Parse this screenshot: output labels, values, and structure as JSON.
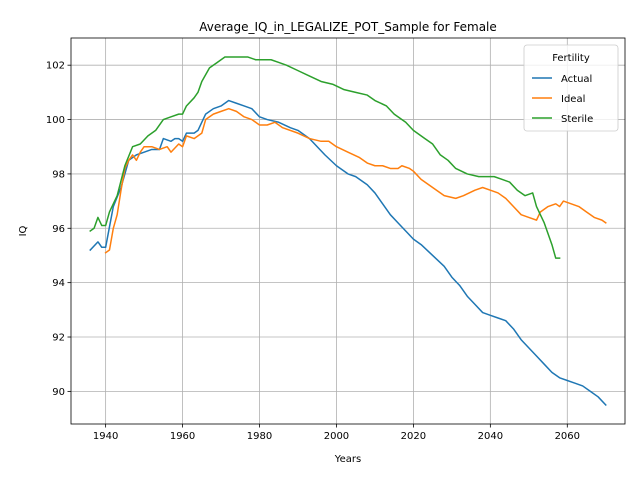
{
  "chart_data": {
    "type": "line",
    "title": "Average_IQ_in_LEGALIZE_POT_Sample for Female",
    "xlabel": "Years",
    "ylabel": "IQ",
    "xlim": [
      1931,
      2075
    ],
    "ylim": [
      88.8,
      103.0
    ],
    "xticks": [
      1940,
      1960,
      1980,
      2000,
      2020,
      2040,
      2060
    ],
    "yticks": [
      90,
      92,
      94,
      96,
      98,
      100,
      102
    ],
    "grid": true,
    "legend": {
      "title": "Fertility",
      "placement": "top-right"
    },
    "series": [
      {
        "name": "Actual",
        "color": "#1f77b4",
        "points": [
          [
            1936,
            95.2
          ],
          [
            1938,
            95.5
          ],
          [
            1939,
            95.3
          ],
          [
            1940,
            95.3
          ],
          [
            1942,
            96.8
          ],
          [
            1944,
            97.5
          ],
          [
            1946,
            98.5
          ],
          [
            1948,
            98.7
          ],
          [
            1950,
            98.8
          ],
          [
            1952,
            98.9
          ],
          [
            1954,
            98.9
          ],
          [
            1955,
            99.3
          ],
          [
            1957,
            99.2
          ],
          [
            1958,
            99.3
          ],
          [
            1959,
            99.3
          ],
          [
            1960,
            99.2
          ],
          [
            1961,
            99.5
          ],
          [
            1963,
            99.5
          ],
          [
            1964,
            99.6
          ],
          [
            1966,
            100.2
          ],
          [
            1968,
            100.4
          ],
          [
            1970,
            100.5
          ],
          [
            1972,
            100.7
          ],
          [
            1974,
            100.6
          ],
          [
            1976,
            100.5
          ],
          [
            1978,
            100.4
          ],
          [
            1980,
            100.1
          ],
          [
            1982,
            100.0
          ],
          [
            1985,
            99.9
          ],
          [
            1988,
            99.7
          ],
          [
            1990,
            99.6
          ],
          [
            1993,
            99.3
          ],
          [
            1995,
            99.0
          ],
          [
            1997,
            98.7
          ],
          [
            2000,
            98.3
          ],
          [
            2003,
            98.0
          ],
          [
            2005,
            97.9
          ],
          [
            2008,
            97.6
          ],
          [
            2010,
            97.3
          ],
          [
            2012,
            96.9
          ],
          [
            2014,
            96.5
          ],
          [
            2016,
            96.2
          ],
          [
            2018,
            95.9
          ],
          [
            2020,
            95.6
          ],
          [
            2022,
            95.4
          ],
          [
            2025,
            95.0
          ],
          [
            2028,
            94.6
          ],
          [
            2030,
            94.2
          ],
          [
            2032,
            93.9
          ],
          [
            2034,
            93.5
          ],
          [
            2036,
            93.2
          ],
          [
            2038,
            92.9
          ],
          [
            2040,
            92.8
          ],
          [
            2042,
            92.7
          ],
          [
            2044,
            92.6
          ],
          [
            2046,
            92.3
          ],
          [
            2048,
            91.9
          ],
          [
            2050,
            91.6
          ],
          [
            2052,
            91.3
          ],
          [
            2054,
            91.0
          ],
          [
            2056,
            90.7
          ],
          [
            2058,
            90.5
          ],
          [
            2060,
            90.4
          ],
          [
            2062,
            90.3
          ],
          [
            2064,
            90.2
          ],
          [
            2066,
            90.0
          ],
          [
            2068,
            89.8
          ],
          [
            2070,
            89.5
          ]
        ]
      },
      {
        "name": "Ideal",
        "color": "#ff7f0e",
        "points": [
          [
            1940,
            95.1
          ],
          [
            1941,
            95.2
          ],
          [
            1942,
            96.0
          ],
          [
            1943,
            96.5
          ],
          [
            1944,
            97.4
          ],
          [
            1945,
            98.2
          ],
          [
            1946,
            98.5
          ],
          [
            1947,
            98.7
          ],
          [
            1948,
            98.5
          ],
          [
            1949,
            98.8
          ],
          [
            1950,
            99.0
          ],
          [
            1952,
            99.0
          ],
          [
            1954,
            98.9
          ],
          [
            1956,
            99.0
          ],
          [
            1957,
            98.8
          ],
          [
            1959,
            99.1
          ],
          [
            1960,
            99.0
          ],
          [
            1961,
            99.4
          ],
          [
            1963,
            99.3
          ],
          [
            1965,
            99.5
          ],
          [
            1966,
            100.0
          ],
          [
            1968,
            100.2
          ],
          [
            1970,
            100.3
          ],
          [
            1972,
            100.4
          ],
          [
            1974,
            100.3
          ],
          [
            1976,
            100.1
          ],
          [
            1978,
            100.0
          ],
          [
            1980,
            99.8
          ],
          [
            1982,
            99.8
          ],
          [
            1984,
            99.9
          ],
          [
            1986,
            99.7
          ],
          [
            1990,
            99.5
          ],
          [
            1993,
            99.3
          ],
          [
            1996,
            99.2
          ],
          [
            1998,
            99.2
          ],
          [
            2000,
            99.0
          ],
          [
            2003,
            98.8
          ],
          [
            2006,
            98.6
          ],
          [
            2008,
            98.4
          ],
          [
            2010,
            98.3
          ],
          [
            2012,
            98.3
          ],
          [
            2014,
            98.2
          ],
          [
            2016,
            98.2
          ],
          [
            2017,
            98.3
          ],
          [
            2019,
            98.2
          ],
          [
            2020,
            98.1
          ],
          [
            2022,
            97.8
          ],
          [
            2025,
            97.5
          ],
          [
            2028,
            97.2
          ],
          [
            2031,
            97.1
          ],
          [
            2033,
            97.2
          ],
          [
            2036,
            97.4
          ],
          [
            2038,
            97.5
          ],
          [
            2040,
            97.4
          ],
          [
            2042,
            97.3
          ],
          [
            2044,
            97.1
          ],
          [
            2046,
            96.8
          ],
          [
            2048,
            96.5
          ],
          [
            2050,
            96.4
          ],
          [
            2052,
            96.3
          ],
          [
            2053,
            96.6
          ],
          [
            2055,
            96.8
          ],
          [
            2057,
            96.9
          ],
          [
            2058,
            96.8
          ],
          [
            2059,
            97.0
          ],
          [
            2061,
            96.9
          ],
          [
            2063,
            96.8
          ],
          [
            2065,
            96.6
          ],
          [
            2067,
            96.4
          ],
          [
            2069,
            96.3
          ],
          [
            2070,
            96.2
          ]
        ]
      },
      {
        "name": "Sterile",
        "color": "#2ca02c",
        "points": [
          [
            1936,
            95.9
          ],
          [
            1937,
            96.0
          ],
          [
            1938,
            96.4
          ],
          [
            1939,
            96.1
          ],
          [
            1940,
            96.1
          ],
          [
            1941,
            96.6
          ],
          [
            1943,
            97.2
          ],
          [
            1945,
            98.3
          ],
          [
            1947,
            99.0
          ],
          [
            1949,
            99.1
          ],
          [
            1951,
            99.4
          ],
          [
            1953,
            99.6
          ],
          [
            1955,
            100.0
          ],
          [
            1957,
            100.1
          ],
          [
            1959,
            100.2
          ],
          [
            1960,
            100.2
          ],
          [
            1961,
            100.5
          ],
          [
            1963,
            100.8
          ],
          [
            1964,
            101.0
          ],
          [
            1965,
            101.4
          ],
          [
            1967,
            101.9
          ],
          [
            1969,
            102.1
          ],
          [
            1971,
            102.3
          ],
          [
            1973,
            102.3
          ],
          [
            1975,
            102.3
          ],
          [
            1977,
            102.3
          ],
          [
            1979,
            102.2
          ],
          [
            1981,
            102.2
          ],
          [
            1983,
            102.2
          ],
          [
            1985,
            102.1
          ],
          [
            1987,
            102.0
          ],
          [
            1990,
            101.8
          ],
          [
            1993,
            101.6
          ],
          [
            1996,
            101.4
          ],
          [
            1999,
            101.3
          ],
          [
            2002,
            101.1
          ],
          [
            2005,
            101.0
          ],
          [
            2008,
            100.9
          ],
          [
            2010,
            100.7
          ],
          [
            2013,
            100.5
          ],
          [
            2015,
            100.2
          ],
          [
            2018,
            99.9
          ],
          [
            2020,
            99.6
          ],
          [
            2023,
            99.3
          ],
          [
            2025,
            99.1
          ],
          [
            2027,
            98.7
          ],
          [
            2029,
            98.5
          ],
          [
            2031,
            98.2
          ],
          [
            2034,
            98.0
          ],
          [
            2037,
            97.9
          ],
          [
            2039,
            97.9
          ],
          [
            2041,
            97.9
          ],
          [
            2043,
            97.8
          ],
          [
            2045,
            97.7
          ],
          [
            2047,
            97.4
          ],
          [
            2049,
            97.2
          ],
          [
            2051,
            97.3
          ],
          [
            2052,
            96.8
          ],
          [
            2054,
            96.2
          ],
          [
            2056,
            95.4
          ],
          [
            2057,
            94.9
          ],
          [
            2058,
            94.9
          ]
        ]
      }
    ]
  }
}
